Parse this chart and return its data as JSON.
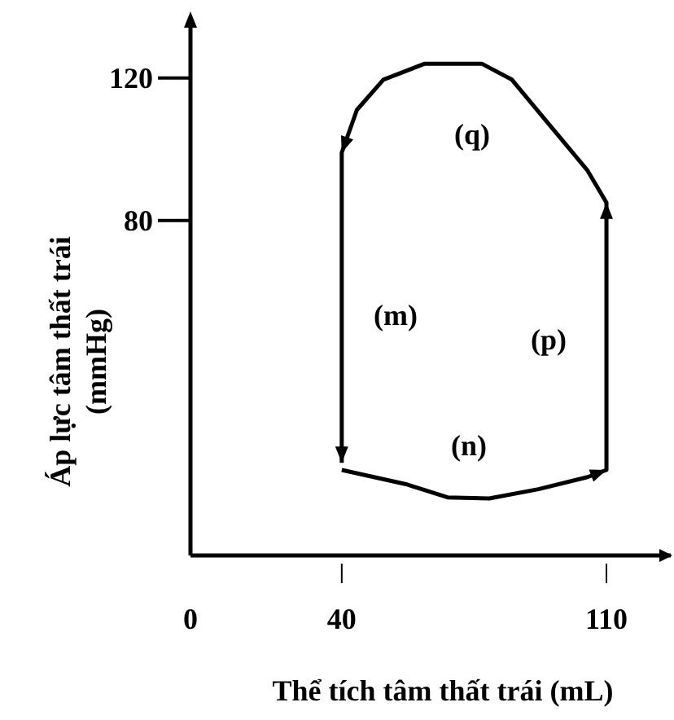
{
  "chart_data": {
    "type": "line",
    "xlabel": "Thể tích tâm thất trái (mL)",
    "ylabel": "Áp lực tâm thất trái\n(mmHg)",
    "xlim": [
      0,
      127
    ],
    "ylim": [
      -14,
      135
    ],
    "xticks": [
      0,
      40,
      110
    ],
    "yticks": [
      80,
      120
    ],
    "grid": false,
    "marker": "none",
    "line_style": "solid",
    "series": [
      {
        "color": "#000000",
        "x": [
          40,
          57,
          68,
          79,
          92,
          105,
          110,
          110,
          105,
          94,
          85,
          77,
          62,
          51,
          44,
          40,
          40
        ],
        "values": [
          10,
          6,
          2.3,
          2,
          4.6,
          8,
          10,
          85,
          94,
          108,
          119.5,
          124,
          124,
          119.5,
          111,
          99,
          12
        ]
      }
    ],
    "annotations": [
      "(q)",
      "(m)",
      "(p)",
      "(n)"
    ]
  }
}
